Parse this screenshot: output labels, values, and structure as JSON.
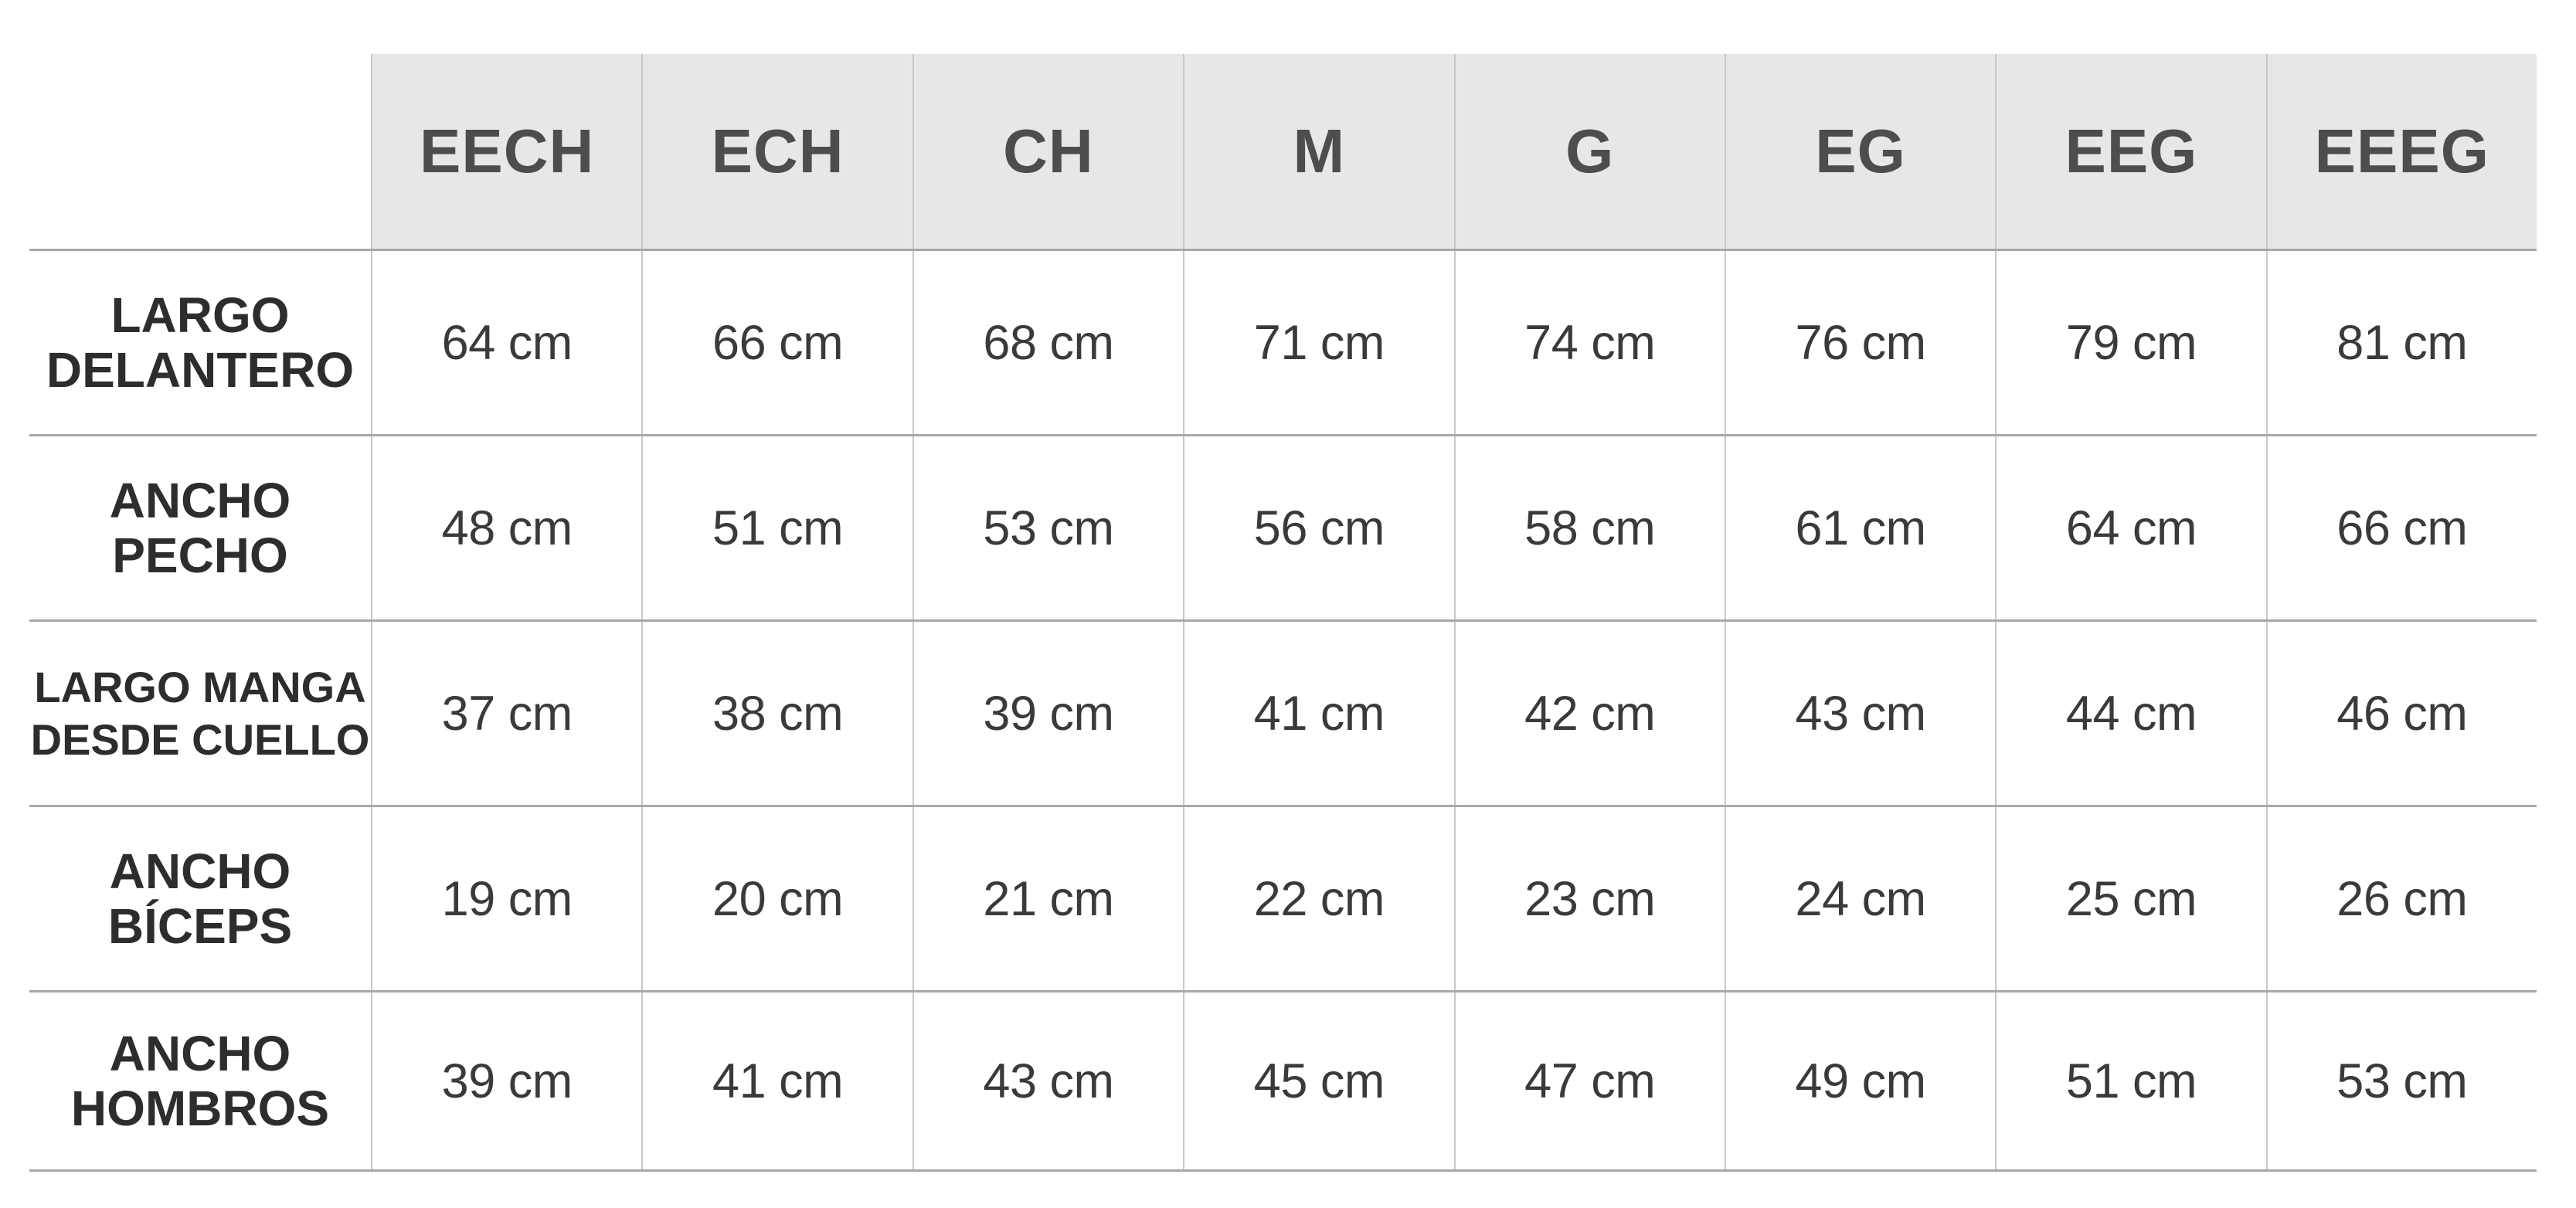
{
  "table": {
    "columns": [
      "EECH",
      "ECH",
      "CH",
      "M",
      "G",
      "EG",
      "EEG",
      "EEEG"
    ],
    "rows": [
      {
        "label": "LARGO DELANTERO",
        "label_lines": [
          "LARGO",
          "DELANTERO"
        ],
        "values": [
          "64 cm",
          "66 cm",
          "68 cm",
          "71 cm",
          "74 cm",
          "76 cm",
          "79 cm",
          "81 cm"
        ]
      },
      {
        "label": "ANCHO PECHO",
        "label_lines": [
          "ANCHO",
          "PECHO"
        ],
        "values": [
          "48 cm",
          "51 cm",
          "53 cm",
          "56 cm",
          "58 cm",
          "61 cm",
          "64 cm",
          "66 cm"
        ]
      },
      {
        "label": "LARGO MANGA DESDE CUELLO",
        "label_lines": [
          "LARGO MANGA",
          "DESDE CUELLO"
        ],
        "values": [
          "37 cm",
          "38 cm",
          "39 cm",
          "41 cm",
          "42 cm",
          "43 cm",
          "44 cm",
          "46 cm"
        ]
      },
      {
        "label": "ANCHO BÍCEPS",
        "label_lines": [
          "ANCHO",
          "BÍCEPS"
        ],
        "values": [
          "19 cm",
          "20 cm",
          "21 cm",
          "22 cm",
          "23 cm",
          "24 cm",
          "25 cm",
          "26 cm"
        ]
      },
      {
        "label": "ANCHO HOMBROS",
        "label_lines": [
          "ANCHO",
          "HOMBROS"
        ],
        "values": [
          "39 cm",
          "41 cm",
          "43 cm",
          "45 cm",
          "47 cm",
          "49 cm",
          "51 cm",
          "53 cm"
        ]
      }
    ],
    "unit": "cm",
    "colors": {
      "page_bg": "#ffffff",
      "header_bg": "#e7e7e7",
      "header_text": "#4d4d4f",
      "label_text": "#2d2d2f",
      "value_text": "#3a3a3c",
      "horizontal_line": "#a8a8a8",
      "vertical_line": "#c8c8c8"
    }
  },
  "chart_data": {
    "type": "table",
    "title": "",
    "columns": [
      "EECH",
      "ECH",
      "CH",
      "M",
      "G",
      "EG",
      "EEG",
      "EEEG"
    ],
    "unit": "cm",
    "rows": [
      {
        "label": "LARGO DELANTERO",
        "values": [
          64,
          66,
          68,
          71,
          74,
          76,
          79,
          81
        ]
      },
      {
        "label": "ANCHO PECHO",
        "values": [
          48,
          51,
          53,
          56,
          58,
          61,
          64,
          66
        ]
      },
      {
        "label": "LARGO MANGA DESDE CUELLO",
        "values": [
          37,
          38,
          39,
          41,
          42,
          43,
          44,
          46
        ]
      },
      {
        "label": "ANCHO BÍCEPS",
        "values": [
          19,
          20,
          21,
          22,
          23,
          24,
          25,
          26
        ]
      },
      {
        "label": "ANCHO HOMBROS",
        "values": [
          39,
          41,
          43,
          45,
          47,
          49,
          51,
          53
        ]
      }
    ]
  }
}
